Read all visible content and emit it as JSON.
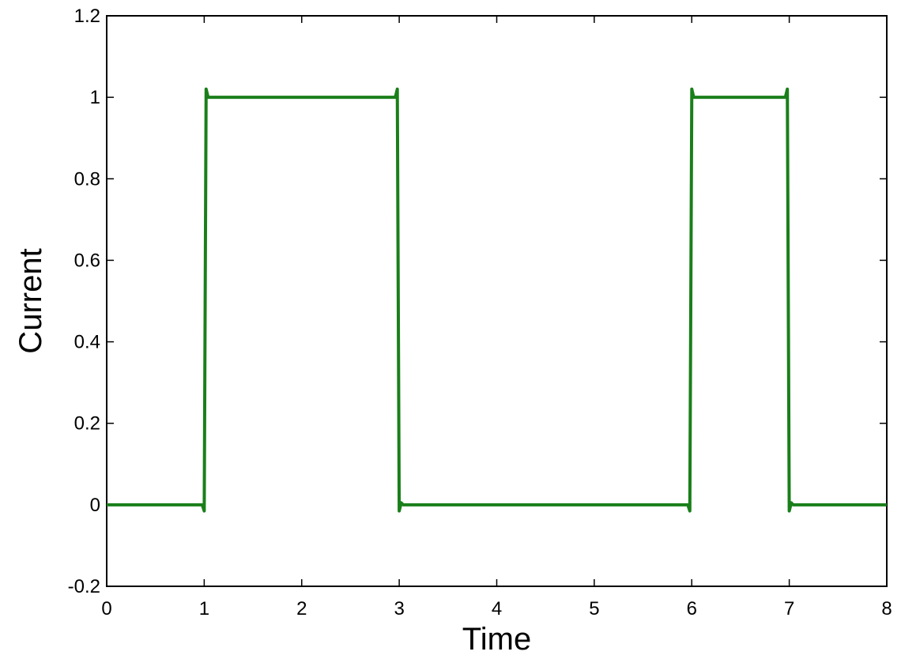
{
  "chart_data": {
    "type": "line",
    "title": "",
    "xlabel": "Time",
    "ylabel": "Current",
    "xlim": [
      0,
      8
    ],
    "ylim": [
      -0.2,
      1.2
    ],
    "xticks": [
      "0",
      "1",
      "2",
      "3",
      "4",
      "5",
      "6",
      "7",
      "8"
    ],
    "yticks": [
      "-0.2",
      "0",
      "0.2",
      "0.4",
      "0.6",
      "0.8",
      "1",
      "1.2"
    ],
    "grid": false,
    "legend": "none",
    "series": [
      {
        "color": "#1a7f1a",
        "x": [
          0,
          0.98,
          1.0,
          1.02,
          1.04,
          2.96,
          2.98,
          3.0,
          3.02,
          3.04,
          5.96,
          5.98,
          6.0,
          6.02,
          6.04,
          6.96,
          6.98,
          7.0,
          7.02,
          7.04,
          8
        ],
        "y": [
          0,
          0,
          -0.015,
          1.02,
          1.0,
          1.0,
          1.02,
          -0.015,
          0.005,
          0,
          0,
          -0.015,
          1.02,
          1.0,
          1.0,
          1.0,
          1.02,
          -0.015,
          0.005,
          0,
          0
        ]
      }
    ]
  }
}
